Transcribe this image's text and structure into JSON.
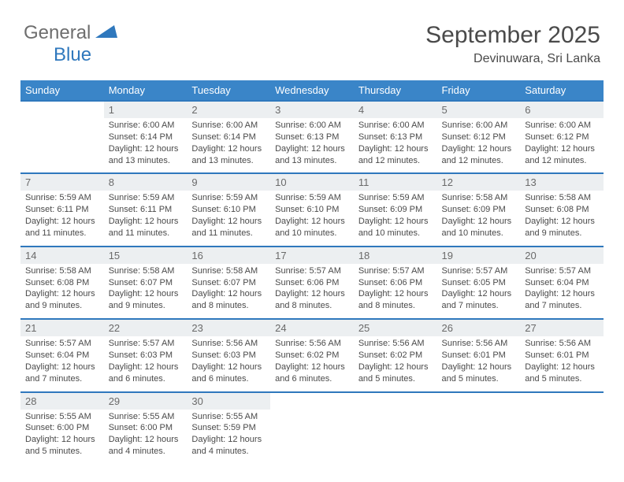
{
  "brand": {
    "part1": "General",
    "part2": "Blue",
    "logo_color": "#2f78bd",
    "gray": "#6e6e6e"
  },
  "title": "September 2025",
  "location": "Devinuwara, Sri Lanka",
  "daybar_bg": "#3a85c8",
  "daybar_fg": "#ffffff",
  "numrow_bg": "#eceff1",
  "border_color": "#2f78bd",
  "text_color": "#4a4a4a",
  "days": [
    "Sunday",
    "Monday",
    "Tuesday",
    "Wednesday",
    "Thursday",
    "Friday",
    "Saturday"
  ],
  "weeks": [
    {
      "nums": [
        "",
        "1",
        "2",
        "3",
        "4",
        "5",
        "6"
      ],
      "cells": [
        null,
        {
          "sunrise": "Sunrise: 6:00 AM",
          "sunset": "Sunset: 6:14 PM",
          "day": "Daylight: 12 hours and 13 minutes."
        },
        {
          "sunrise": "Sunrise: 6:00 AM",
          "sunset": "Sunset: 6:14 PM",
          "day": "Daylight: 12 hours and 13 minutes."
        },
        {
          "sunrise": "Sunrise: 6:00 AM",
          "sunset": "Sunset: 6:13 PM",
          "day": "Daylight: 12 hours and 13 minutes."
        },
        {
          "sunrise": "Sunrise: 6:00 AM",
          "sunset": "Sunset: 6:13 PM",
          "day": "Daylight: 12 hours and 12 minutes."
        },
        {
          "sunrise": "Sunrise: 6:00 AM",
          "sunset": "Sunset: 6:12 PM",
          "day": "Daylight: 12 hours and 12 minutes."
        },
        {
          "sunrise": "Sunrise: 6:00 AM",
          "sunset": "Sunset: 6:12 PM",
          "day": "Daylight: 12 hours and 12 minutes."
        }
      ]
    },
    {
      "nums": [
        "7",
        "8",
        "9",
        "10",
        "11",
        "12",
        "13"
      ],
      "cells": [
        {
          "sunrise": "Sunrise: 5:59 AM",
          "sunset": "Sunset: 6:11 PM",
          "day": "Daylight: 12 hours and 11 minutes."
        },
        {
          "sunrise": "Sunrise: 5:59 AM",
          "sunset": "Sunset: 6:11 PM",
          "day": "Daylight: 12 hours and 11 minutes."
        },
        {
          "sunrise": "Sunrise: 5:59 AM",
          "sunset": "Sunset: 6:10 PM",
          "day": "Daylight: 12 hours and 11 minutes."
        },
        {
          "sunrise": "Sunrise: 5:59 AM",
          "sunset": "Sunset: 6:10 PM",
          "day": "Daylight: 12 hours and 10 minutes."
        },
        {
          "sunrise": "Sunrise: 5:59 AM",
          "sunset": "Sunset: 6:09 PM",
          "day": "Daylight: 12 hours and 10 minutes."
        },
        {
          "sunrise": "Sunrise: 5:58 AM",
          "sunset": "Sunset: 6:09 PM",
          "day": "Daylight: 12 hours and 10 minutes."
        },
        {
          "sunrise": "Sunrise: 5:58 AM",
          "sunset": "Sunset: 6:08 PM",
          "day": "Daylight: 12 hours and 9 minutes."
        }
      ]
    },
    {
      "nums": [
        "14",
        "15",
        "16",
        "17",
        "18",
        "19",
        "20"
      ],
      "cells": [
        {
          "sunrise": "Sunrise: 5:58 AM",
          "sunset": "Sunset: 6:08 PM",
          "day": "Daylight: 12 hours and 9 minutes."
        },
        {
          "sunrise": "Sunrise: 5:58 AM",
          "sunset": "Sunset: 6:07 PM",
          "day": "Daylight: 12 hours and 9 minutes."
        },
        {
          "sunrise": "Sunrise: 5:58 AM",
          "sunset": "Sunset: 6:07 PM",
          "day": "Daylight: 12 hours and 8 minutes."
        },
        {
          "sunrise": "Sunrise: 5:57 AM",
          "sunset": "Sunset: 6:06 PM",
          "day": "Daylight: 12 hours and 8 minutes."
        },
        {
          "sunrise": "Sunrise: 5:57 AM",
          "sunset": "Sunset: 6:06 PM",
          "day": "Daylight: 12 hours and 8 minutes."
        },
        {
          "sunrise": "Sunrise: 5:57 AM",
          "sunset": "Sunset: 6:05 PM",
          "day": "Daylight: 12 hours and 7 minutes."
        },
        {
          "sunrise": "Sunrise: 5:57 AM",
          "sunset": "Sunset: 6:04 PM",
          "day": "Daylight: 12 hours and 7 minutes."
        }
      ]
    },
    {
      "nums": [
        "21",
        "22",
        "23",
        "24",
        "25",
        "26",
        "27"
      ],
      "cells": [
        {
          "sunrise": "Sunrise: 5:57 AM",
          "sunset": "Sunset: 6:04 PM",
          "day": "Daylight: 12 hours and 7 minutes."
        },
        {
          "sunrise": "Sunrise: 5:57 AM",
          "sunset": "Sunset: 6:03 PM",
          "day": "Daylight: 12 hours and 6 minutes."
        },
        {
          "sunrise": "Sunrise: 5:56 AM",
          "sunset": "Sunset: 6:03 PM",
          "day": "Daylight: 12 hours and 6 minutes."
        },
        {
          "sunrise": "Sunrise: 5:56 AM",
          "sunset": "Sunset: 6:02 PM",
          "day": "Daylight: 12 hours and 6 minutes."
        },
        {
          "sunrise": "Sunrise: 5:56 AM",
          "sunset": "Sunset: 6:02 PM",
          "day": "Daylight: 12 hours and 5 minutes."
        },
        {
          "sunrise": "Sunrise: 5:56 AM",
          "sunset": "Sunset: 6:01 PM",
          "day": "Daylight: 12 hours and 5 minutes."
        },
        {
          "sunrise": "Sunrise: 5:56 AM",
          "sunset": "Sunset: 6:01 PM",
          "day": "Daylight: 12 hours and 5 minutes."
        }
      ]
    },
    {
      "nums": [
        "28",
        "29",
        "30",
        "",
        "",
        "",
        ""
      ],
      "cells": [
        {
          "sunrise": "Sunrise: 5:55 AM",
          "sunset": "Sunset: 6:00 PM",
          "day": "Daylight: 12 hours and 5 minutes."
        },
        {
          "sunrise": "Sunrise: 5:55 AM",
          "sunset": "Sunset: 6:00 PM",
          "day": "Daylight: 12 hours and 4 minutes."
        },
        {
          "sunrise": "Sunrise: 5:55 AM",
          "sunset": "Sunset: 5:59 PM",
          "day": "Daylight: 12 hours and 4 minutes."
        },
        null,
        null,
        null,
        null
      ]
    }
  ]
}
